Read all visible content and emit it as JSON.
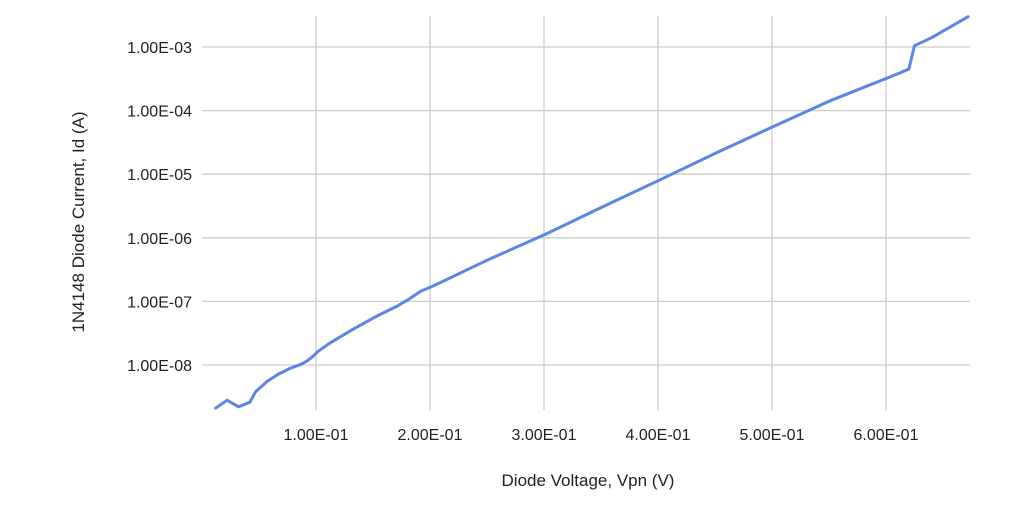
{
  "chart_data": {
    "type": "line",
    "title": "",
    "xlabel": "Diode Voltage, Vpn (V)",
    "ylabel": "1N4148 Diode Current, Id (A)",
    "y_scale": "log",
    "grid": true,
    "legend": "none",
    "series_color": "#5b86e5",
    "xlim": [
      0.0,
      0.67
    ],
    "ylim": [
      2e-09,
      0.003
    ],
    "x_tick_values": [
      0.1,
      0.2,
      0.3,
      0.4,
      0.5,
      0.6
    ],
    "x_tick_labels": [
      "1.00E-01",
      "2.00E-01",
      "3.00E-01",
      "4.00E-01",
      "5.00E-01",
      "6.00E-01"
    ],
    "y_tick_values": [
      1e-08,
      1e-07,
      1e-06,
      1e-05,
      0.0001,
      0.001
    ],
    "y_tick_labels": [
      "1.00E-08",
      "1.00E-07",
      "1.00E-06",
      "1.00E-05",
      "1.00E-04",
      "1.00E-03"
    ],
    "series": [
      {
        "x": [
          0.012,
          0.022,
          0.032,
          0.042,
          0.047,
          0.057,
          0.067,
          0.077,
          0.087,
          0.092,
          0.097,
          0.102,
          0.112,
          0.132,
          0.152,
          0.172,
          0.182,
          0.192,
          0.202,
          0.252,
          0.302,
          0.352,
          0.402,
          0.452,
          0.502,
          0.552,
          0.602,
          0.612,
          0.616,
          0.62,
          0.625,
          0.64,
          0.672
        ],
        "y": [
          2.1e-09,
          2.8e-09,
          2.2e-09,
          2.6e-09,
          3.8e-09,
          5.5e-09,
          7.2e-09,
          8.8e-09,
          1.03e-08,
          1.15e-08,
          1.35e-08,
          1.65e-08,
          2.2e-08,
          3.6e-08,
          5.7e-08,
          8.6e-08,
          1.1e-07,
          1.45e-07,
          1.72e-07,
          4.6e-07,
          1.15e-06,
          3.1e-06,
          8.2e-06,
          2.2e-05,
          5.7e-05,
          0.000145,
          0.00033,
          0.00039,
          0.00042,
          0.00045,
          0.00105,
          0.0014,
          0.003
        ]
      }
    ]
  }
}
